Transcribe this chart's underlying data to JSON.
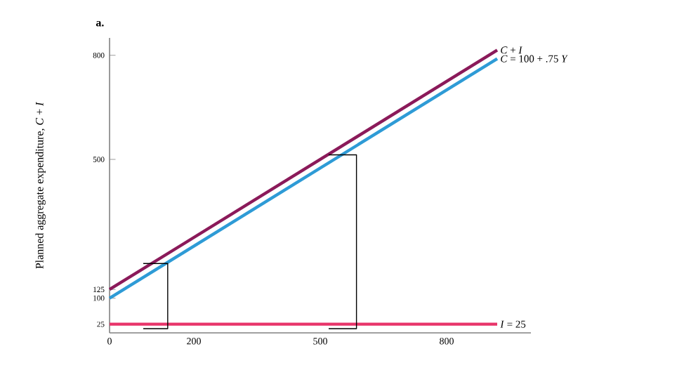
{
  "chart_data": {
    "type": "line",
    "title": "a.",
    "ylabel": "Planned aggregate expenditure, *C* + *I*",
    "xlim": [
      0,
      1000
    ],
    "ylim": [
      0,
      850
    ],
    "xticks": [
      0,
      200,
      500,
      800
    ],
    "yticks": [
      25,
      100,
      125,
      500,
      800
    ],
    "grid": false,
    "marker": "none",
    "line_style": "solid",
    "series": [
      {
        "name": "*C* + *I*",
        "color": "#8b1a5a",
        "x": [
          0,
          920
        ],
        "values": [
          125,
          815
        ]
      },
      {
        "name": "*C* = 100 + .75 *Y*",
        "color": "#2e9bd6",
        "x": [
          0,
          920
        ],
        "values": [
          100,
          790
        ]
      },
      {
        "name": "*I* = 25",
        "color": "#e8346a",
        "x": [
          0,
          920
        ],
        "values": [
          25,
          25
        ]
      },
      {
        "color": "#000000",
        "x": [
          80,
          138,
          138,
          80
        ],
        "values": [
          12,
          12,
          200,
          200
        ]
      },
      {
        "color": "#000000",
        "x": [
          520,
          586,
          586,
          520
        ],
        "values": [
          12,
          12,
          513,
          513
        ]
      }
    ]
  }
}
